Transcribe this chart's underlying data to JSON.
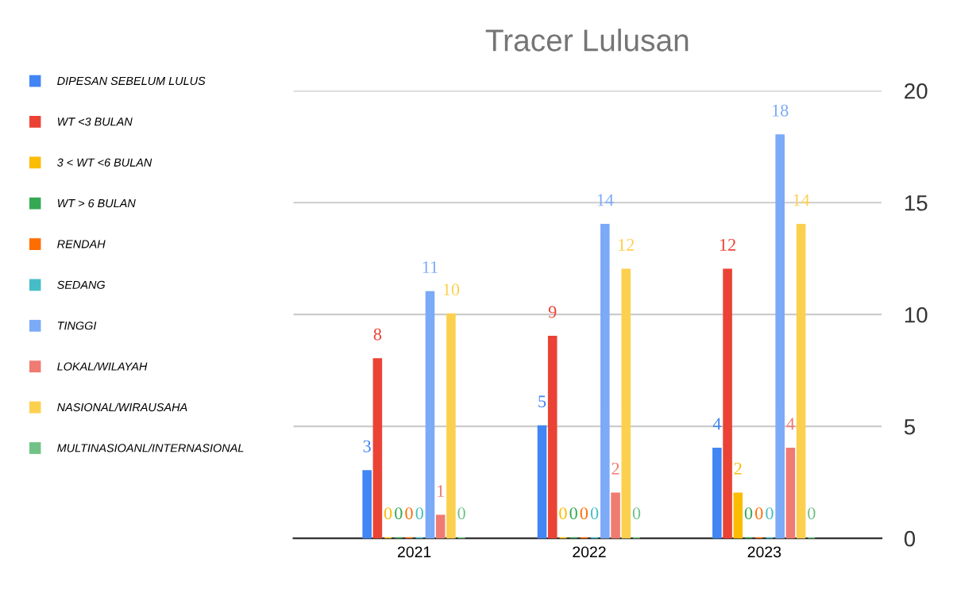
{
  "chart_data": {
    "type": "bar",
    "title": "Tracer Lulusan",
    "categories": [
      "2021",
      "2022",
      "2023"
    ],
    "series": [
      {
        "name": "DIPESAN SEBELUM LULUS",
        "color": "#4285f4",
        "values": [
          3,
          5,
          4
        ]
      },
      {
        "name": "WT <3 BULAN",
        "color": "#ea4335",
        "values": [
          8,
          9,
          12
        ]
      },
      {
        "name": "3 < WT <6 BULAN",
        "color": "#fbbc04",
        "values": [
          0,
          0,
          2
        ]
      },
      {
        "name": "WT > 6 BULAN",
        "color": "#34a853",
        "values": [
          0,
          0,
          0
        ]
      },
      {
        "name": "RENDAH",
        "color": "#ff6d01",
        "values": [
          0,
          0,
          0
        ]
      },
      {
        "name": "SEDANG",
        "color": "#46bdc6",
        "values": [
          0,
          0,
          0
        ]
      },
      {
        "name": "TINGGI",
        "color": "#7baaf7",
        "values": [
          11,
          14,
          18
        ]
      },
      {
        "name": "LOKAL/WILAYAH",
        "color": "#f07b72",
        "values": [
          1,
          2,
          4
        ]
      },
      {
        "name": "NASIONAL/WIRAUSAHA",
        "color": "#fcd04f",
        "values": [
          10,
          12,
          14
        ]
      },
      {
        "name": "MULTINASIOANL/INTERNASIONAL",
        "color": "#71c287",
        "values": [
          0,
          0,
          0
        ]
      }
    ],
    "ylim": [
      0,
      20
    ],
    "yticks": [
      0,
      5,
      10,
      15,
      20
    ],
    "grid": "y",
    "legend": "left",
    "data_labels": true
  }
}
